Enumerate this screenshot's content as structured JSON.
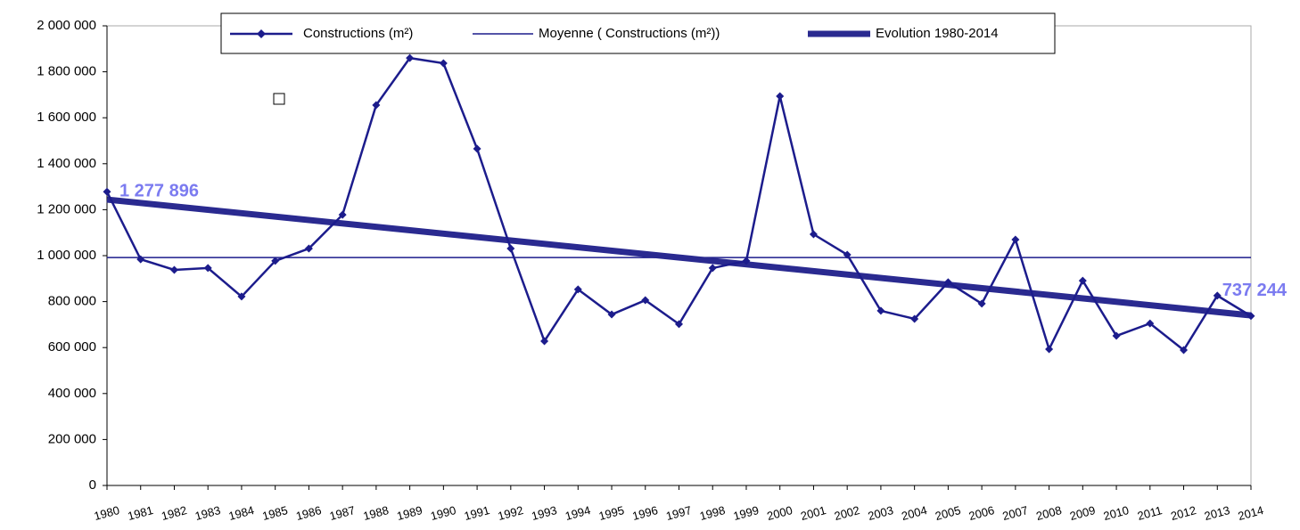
{
  "chart_data": {
    "type": "line",
    "x": [
      1980,
      1981,
      1982,
      1983,
      1984,
      1985,
      1986,
      1987,
      1988,
      1989,
      1990,
      1991,
      1992,
      1993,
      1994,
      1995,
      1996,
      1997,
      1998,
      1999,
      2000,
      2001,
      2002,
      2003,
      2004,
      2005,
      2006,
      2007,
      2008,
      2009,
      2010,
      2011,
      2012,
      2013,
      2014
    ],
    "xlim": [
      1980,
      2014
    ],
    "series": [
      {
        "name": "Constructions (m²)",
        "color": "#1c1c8c",
        "values": [
          1277896,
          984000,
          938000,
          946000,
          822000,
          977000,
          1031000,
          1178000,
          1655000,
          1860000,
          1837000,
          1465000,
          1031000,
          628000,
          853000,
          744000,
          806000,
          702000,
          946000,
          977000,
          1694000,
          1093000,
          1004000,
          760000,
          725000,
          884000,
          791000,
          1070000,
          593000,
          891000,
          651000,
          705000,
          589000,
          826000,
          737244
        ],
        "value_labels": [
          "1 277 896",
          null,
          null,
          null,
          null,
          null,
          null,
          null,
          null,
          null,
          null,
          null,
          null,
          null,
          null,
          null,
          null,
          null,
          null,
          null,
          null,
          null,
          null,
          null,
          null,
          null,
          null,
          null,
          null,
          null,
          null,
          null,
          null,
          null,
          "737 244"
        ]
      }
    ],
    "mean": {
      "name": "Moyenne ( Constructions (m²))",
      "color": "#1c1c8c",
      "value": 992000
    },
    "trend": {
      "name": "Evolution 1980-2014",
      "color": "#2a2a90",
      "x": [
        1980,
        2014
      ],
      "values": [
        1244000,
        740000
      ]
    },
    "ylim": [
      0,
      2000000
    ],
    "yticks": [
      0,
      {
        "value": 200000,
        "label": "200 000"
      },
      {
        "value": 400000,
        "label": "400 000"
      },
      {
        "value": 600000,
        "label": "600 000"
      },
      {
        "value": 800000,
        "label": "800 000"
      },
      {
        "value": 1000000,
        "label": "1 000 000"
      },
      {
        "value": 1200000,
        "label": "1 200 000"
      },
      {
        "value": 1400000,
        "label": "1 400 000"
      },
      {
        "value": 1600000,
        "label": "1 600 000"
      },
      {
        "value": 1800000,
        "label": "1 800 000"
      },
      {
        "value": 2000000,
        "label": "2 000 000"
      }
    ]
  }
}
